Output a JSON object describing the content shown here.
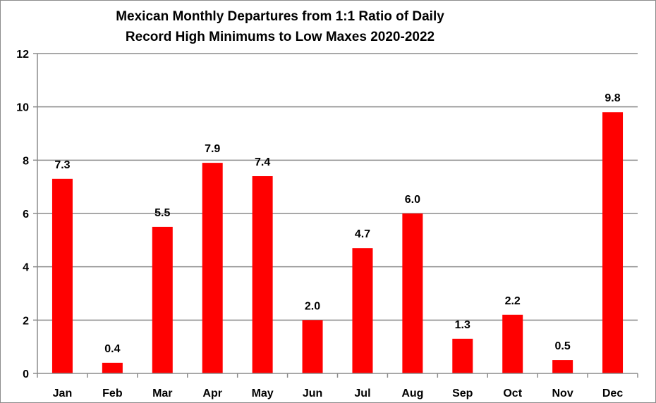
{
  "chart_data": {
    "type": "bar",
    "title": [
      "Mexican Monthly Departures from 1:1 Ratio of Daily",
      "Record High Minimums to Low Maxes 2020-2022"
    ],
    "categories": [
      "Jan",
      "Feb",
      "Mar",
      "Apr",
      "May",
      "Jun",
      "Jul",
      "Aug",
      "Sep",
      "Oct",
      "Nov",
      "Dec"
    ],
    "values": [
      7.3,
      0.4,
      5.5,
      7.9,
      7.4,
      2.0,
      4.7,
      6.0,
      1.3,
      2.2,
      0.5,
      9.8
    ],
    "data_labels": [
      "7.3",
      "0.4",
      "5.5",
      "7.9",
      "7.4",
      "2.0",
      "4.7",
      "6.0",
      "1.3",
      "2.2",
      "0.5",
      "9.8"
    ],
    "ylim": [
      0,
      12
    ],
    "yticks": [
      "0",
      "2",
      "4",
      "6",
      "8",
      "10",
      "12"
    ],
    "xlabel": "",
    "ylabel": "",
    "grid": true,
    "legend": "none",
    "colors": {
      "bar": "#ff0000",
      "grid": "#8c8c8c",
      "axis": "#8c8c8c"
    }
  }
}
